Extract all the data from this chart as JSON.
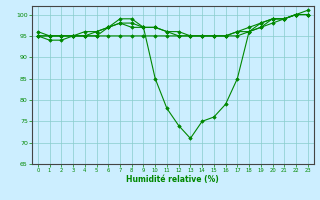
{
  "xlabel": "Humidité relative (%)",
  "background_color": "#cceeff",
  "grid_color": "#88cccc",
  "line_color": "#008800",
  "xlim": [
    -0.5,
    23.5
  ],
  "ylim": [
    65,
    102
  ],
  "yticks": [
    65,
    70,
    75,
    80,
    85,
    90,
    95,
    100
  ],
  "xticks": [
    0,
    1,
    2,
    3,
    4,
    5,
    6,
    7,
    8,
    9,
    10,
    11,
    12,
    13,
    14,
    15,
    16,
    17,
    18,
    19,
    20,
    21,
    22,
    23
  ],
  "series": [
    [
      95,
      94,
      94,
      95,
      95,
      95,
      97,
      98,
      98,
      97,
      85,
      78,
      74,
      71,
      75,
      76,
      79,
      85,
      96,
      98,
      99,
      99,
      100,
      101
    ],
    [
      95,
      95,
      95,
      95,
      95,
      96,
      97,
      99,
      99,
      97,
      97,
      96,
      95,
      95,
      95,
      95,
      95,
      95,
      96,
      97,
      99,
      99,
      100,
      100
    ],
    [
      95,
      95,
      95,
      95,
      96,
      96,
      97,
      98,
      97,
      97,
      97,
      96,
      96,
      95,
      95,
      95,
      95,
      96,
      97,
      98,
      99,
      99,
      100,
      100
    ],
    [
      96,
      95,
      95,
      95,
      95,
      95,
      95,
      95,
      95,
      95,
      95,
      95,
      95,
      95,
      95,
      95,
      95,
      96,
      96,
      97,
      98,
      99,
      100,
      100
    ]
  ]
}
